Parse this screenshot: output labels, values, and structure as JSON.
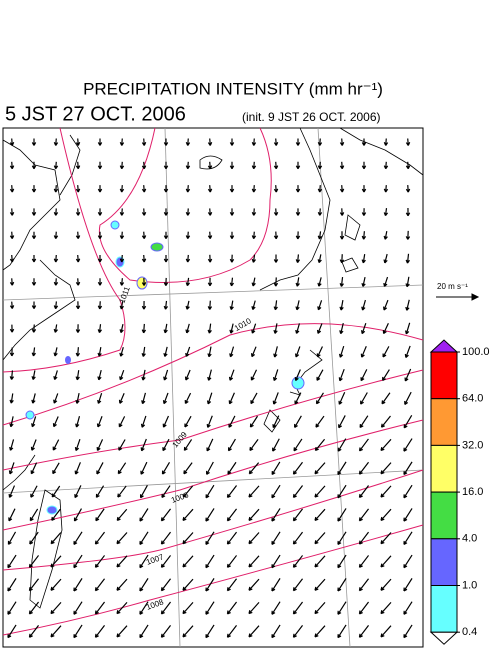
{
  "header": {
    "title": "PRECIPITATION INTENSITY (mm hr⁻¹)",
    "valid_time": "5 JST 27 OCT. 2006",
    "init_time": "(init. 9 JST 26 OCT. 2006)"
  },
  "reference_vector": {
    "label": "20 m s⁻¹"
  },
  "isobars": [
    1011,
    1010,
    1009,
    1008,
    1007,
    1006
  ],
  "colorbar": {
    "ticks": [
      {
        "value": 100,
        "label": "100.0"
      },
      {
        "value": 64,
        "label": "64.0"
      },
      {
        "value": 32,
        "label": "32.0"
      },
      {
        "value": 16,
        "label": "16.0"
      },
      {
        "value": 4,
        "label": "4.0"
      },
      {
        "value": 1,
        "label": "1.0"
      },
      {
        "value": 0.4,
        "label": "0.4"
      }
    ],
    "colors": [
      "#ff0000",
      "#ff9933",
      "#ffff66",
      "#44dd44",
      "#6666ff",
      "#66ffff"
    ],
    "over_color": "#a020f0",
    "under_color": "#ffffff"
  }
}
